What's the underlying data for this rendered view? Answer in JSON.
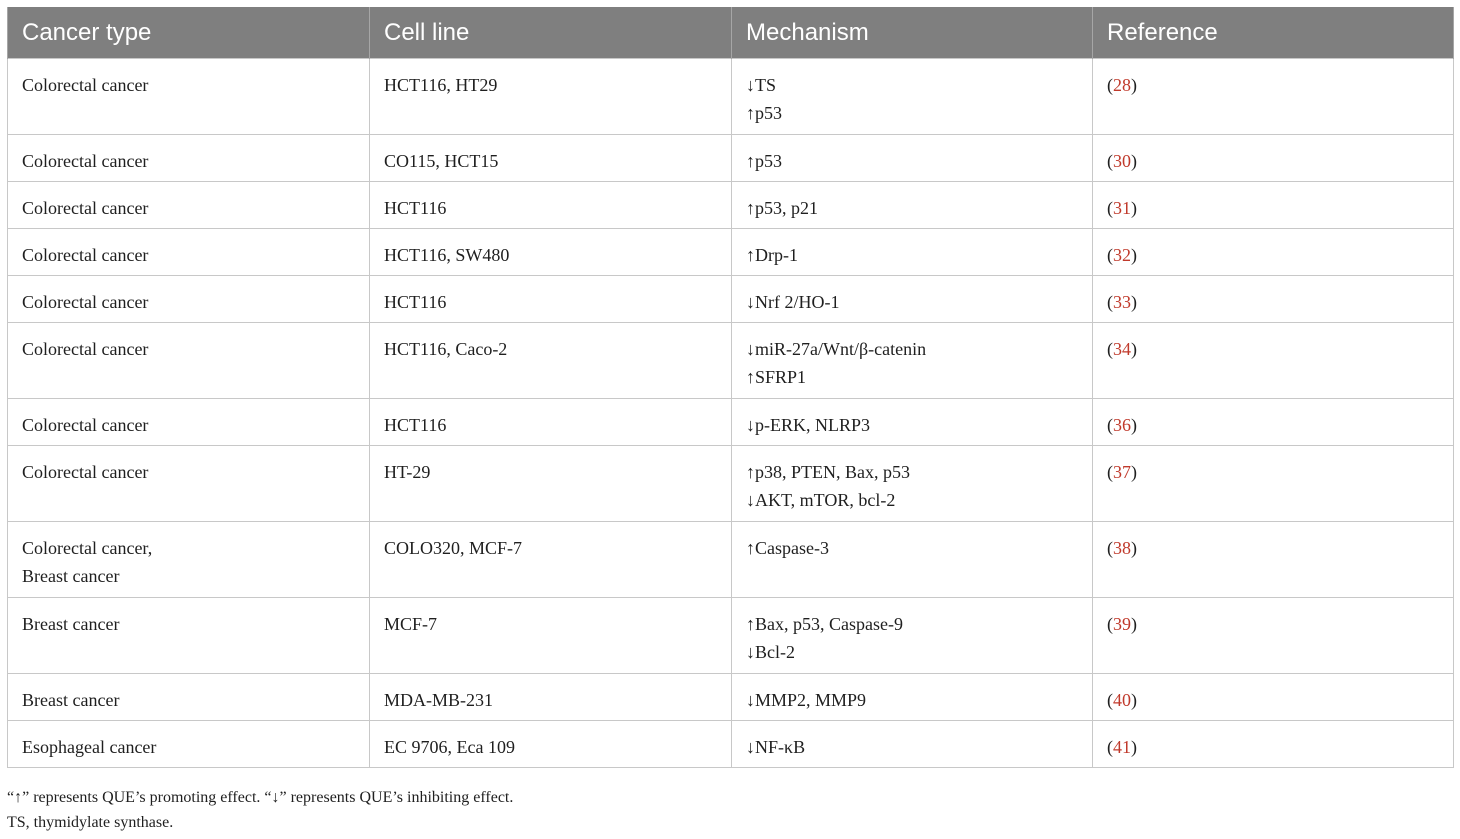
{
  "table": {
    "headers": [
      "Cancer type",
      "Cell line",
      "Mechanism",
      "Reference"
    ],
    "rows": [
      {
        "cancer": [
          "Colorectal cancer"
        ],
        "cell_line": "HCT116, HT29",
        "mechanism": [
          "↓TS",
          "↑p53"
        ],
        "reference": "28"
      },
      {
        "cancer": [
          "Colorectal cancer"
        ],
        "cell_line": "CO115, HCT15",
        "mechanism": [
          "↑p53"
        ],
        "reference": "30"
      },
      {
        "cancer": [
          "Colorectal cancer"
        ],
        "cell_line": "HCT116",
        "mechanism": [
          "↑p53, p21"
        ],
        "reference": "31"
      },
      {
        "cancer": [
          "Colorectal cancer"
        ],
        "cell_line": "HCT116, SW480",
        "mechanism": [
          "↑Drp-1"
        ],
        "reference": "32"
      },
      {
        "cancer": [
          "Colorectal cancer"
        ],
        "cell_line": "HCT116",
        "mechanism": [
          "↓Nrf 2/HO-1"
        ],
        "reference": "33"
      },
      {
        "cancer": [
          "Colorectal cancer"
        ],
        "cell_line": "HCT116, Caco-2",
        "mechanism": [
          "↓miR-27a/Wnt/β-catenin",
          "↑SFRP1"
        ],
        "reference": "34"
      },
      {
        "cancer": [
          "Colorectal cancer"
        ],
        "cell_line": "HCT116",
        "mechanism": [
          "↓p-ERK, NLRP3"
        ],
        "reference": "36"
      },
      {
        "cancer": [
          "Colorectal cancer"
        ],
        "cell_line": "HT-29",
        "mechanism": [
          "↑p38, PTEN, Bax, p53",
          "↓AKT, mTOR, bcl-2"
        ],
        "reference": "37"
      },
      {
        "cancer": [
          "Colorectal cancer,",
          "Breast cancer"
        ],
        "cell_line": "COLO320, MCF-7",
        "mechanism": [
          "↑Caspase-3"
        ],
        "reference": "38"
      },
      {
        "cancer": [
          "Breast cancer"
        ],
        "cell_line": "MCF-7",
        "mechanism": [
          "↑Bax, p53, Caspase-9",
          "↓Bcl-2"
        ],
        "reference": "39"
      },
      {
        "cancer": [
          "Breast cancer"
        ],
        "cell_line": "MDA-MB-231",
        "mechanism": [
          "↓MMP2, MMP9"
        ],
        "reference": "40"
      },
      {
        "cancer": [
          "Esophageal cancer"
        ],
        "cell_line": "EC 9706, Eca 109",
        "mechanism": [
          "↓NF-κB"
        ],
        "reference": "41"
      }
    ]
  },
  "footnotes": [
    "“↑” represents QUE’s promoting effect. “↓” represents QUE’s inhibiting effect.",
    "TS, thymidylate synthase."
  ],
  "colors": {
    "header_bg": "#7f7f7f",
    "header_text": "#ffffff",
    "reference_link": "#c0392b",
    "border": "#c8c8c8"
  }
}
